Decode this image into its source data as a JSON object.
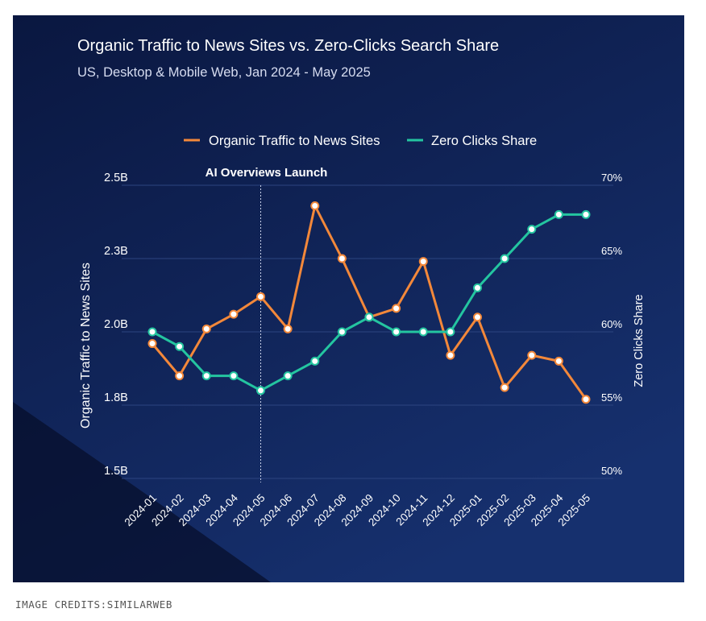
{
  "credit": "IMAGE CREDITS:SIMILARWEB",
  "colors": {
    "background_top": "#0c1a45",
    "background_bottom": "#142a66",
    "organic": "#f3883a",
    "zero_clicks": "#24c5a0",
    "text": "#ffffff",
    "subtitle": "#d6dcf0"
  },
  "chart_data": {
    "type": "line",
    "title": "Organic Traffic to News Sites vs. Zero-Clicks Search Share",
    "subtitle": "US, Desktop & Mobile Web, Jan 2024 - May 2025",
    "ylabel_left": "Organic Traffic to News Sites",
    "ylabel_right": "Zero Clicks Share",
    "y_left_ticks": [
      "1.5B",
      "1.8B",
      "2.0B",
      "2.3B",
      "2.5B"
    ],
    "y_right_ticks": [
      "50%",
      "55%",
      "60%",
      "65%",
      "70%"
    ],
    "ylim_left": [
      1.5,
      2.5
    ],
    "ylim_right": [
      50,
      70
    ],
    "grid": true,
    "legend": "top-center",
    "annotation": "AI Overviews Launch",
    "annotation_x": "2024-05",
    "x": [
      "2024-01",
      "2024-02",
      "2024-03",
      "2024-04",
      "2024-05",
      "2024-06",
      "2024-07",
      "2024-08",
      "2024-09",
      "2024-10",
      "2024-11",
      "2024-12",
      "2025-01",
      "2025-02",
      "2025-03",
      "2025-04",
      "2025-05"
    ],
    "series": [
      {
        "name": "Organic Traffic to News Sites",
        "axis": "left",
        "color": "#f3883a",
        "values": [
          1.96,
          1.85,
          2.01,
          2.06,
          2.12,
          2.01,
          2.43,
          2.25,
          2.05,
          2.08,
          2.24,
          1.92,
          2.05,
          1.81,
          1.92,
          1.9,
          1.77
        ]
      },
      {
        "name": "Zero Clicks Share",
        "axis": "right",
        "color": "#24c5a0",
        "values": [
          60,
          59,
          57,
          57,
          56,
          57,
          58,
          60,
          61,
          60,
          60,
          60,
          63,
          65,
          67,
          68,
          68
        ]
      }
    ]
  }
}
